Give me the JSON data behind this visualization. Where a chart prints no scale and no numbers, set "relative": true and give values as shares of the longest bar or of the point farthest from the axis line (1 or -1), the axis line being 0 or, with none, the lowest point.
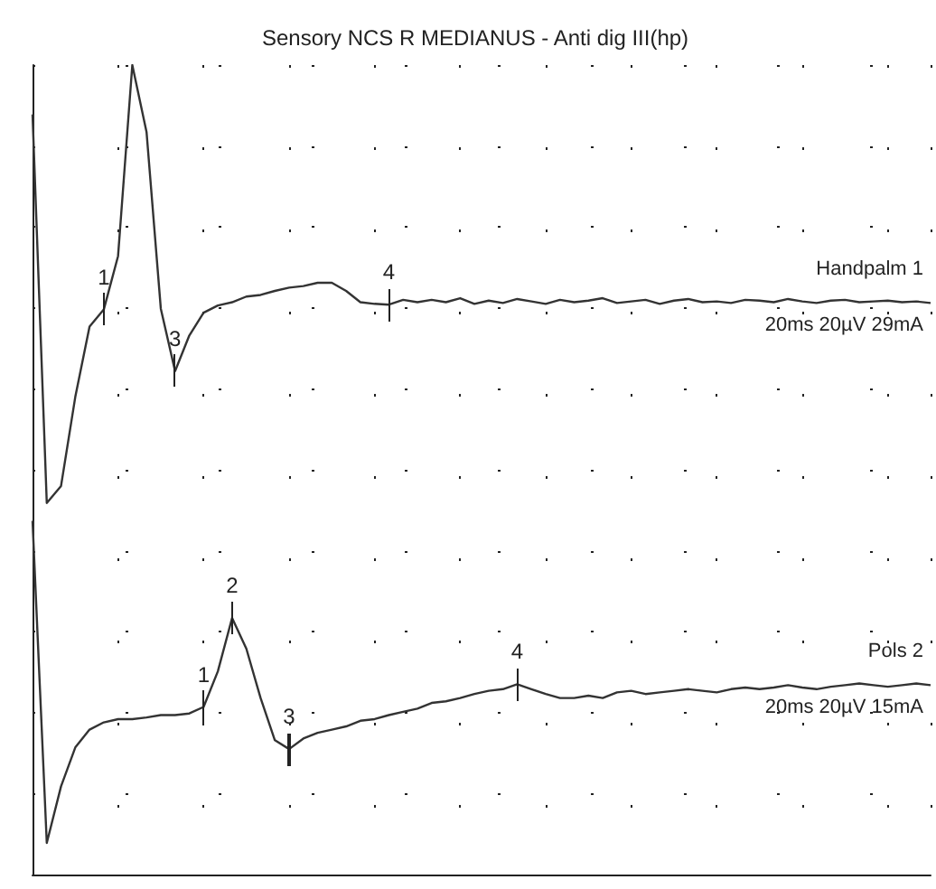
{
  "chart_data": {
    "type": "line",
    "relative": true,
    "title": "Sensory NCS R MEDIANUS - Anti dig III(hp)",
    "categories": [
      null,
      null,
      null,
      null,
      null,
      null,
      null,
      null,
      null,
      null,
      null,
      null,
      null,
      null,
      null,
      null,
      null,
      null,
      null,
      null,
      null,
      null,
      null,
      null,
      null,
      null,
      null,
      null,
      null,
      null,
      null,
      null,
      null,
      null,
      null,
      null,
      null,
      null,
      null,
      null,
      null,
      null,
      null,
      null,
      null,
      null,
      null,
      null,
      null,
      null,
      null,
      null,
      null,
      null,
      null,
      null,
      null,
      null,
      null,
      null,
      null,
      null,
      null,
      null
    ],
    "series": [
      {
        "name": "Handpalm 1",
        "color": "#333333",
        "values": [
          0.939,
          0.459,
          0.48,
          0.59,
          0.677,
          0.698,
          0.764,
          1.0,
          0.917,
          0.699,
          0.622,
          0.666,
          0.694,
          0.703,
          0.707,
          0.714,
          0.716,
          0.721,
          0.725,
          0.727,
          0.731,
          0.731,
          0.721,
          0.707,
          0.705,
          0.704,
          0.71,
          0.707,
          0.71,
          0.707,
          0.712,
          0.705,
          0.709,
          0.706,
          0.711,
          0.708,
          0.705,
          0.71,
          0.707,
          0.709,
          0.712,
          0.706,
          0.708,
          0.71,
          0.705,
          0.709,
          0.711,
          0.707,
          0.708,
          0.706,
          0.71,
          0.709,
          0.707,
          0.711,
          0.708,
          0.706,
          0.709,
          0.71,
          0.707,
          0.708,
          0.709,
          0.707,
          0.708,
          0.706
        ]
      },
      {
        "name": "Pols 2",
        "color": "#333333",
        "values": [
          0.437,
          0.039,
          0.109,
          0.157,
          0.179,
          0.188,
          0.192,
          0.192,
          0.194,
          0.197,
          0.197,
          0.199,
          0.207,
          0.251,
          0.317,
          0.279,
          0.218,
          0.166,
          0.155,
          0.168,
          0.175,
          0.179,
          0.183,
          0.19,
          0.192,
          0.197,
          0.201,
          0.205,
          0.212,
          0.214,
          0.218,
          0.223,
          0.227,
          0.229,
          0.235,
          0.229,
          0.223,
          0.218,
          0.218,
          0.221,
          0.218,
          0.225,
          0.227,
          0.223,
          0.225,
          0.227,
          0.229,
          0.227,
          0.225,
          0.229,
          0.231,
          0.229,
          0.231,
          0.234,
          0.231,
          0.229,
          0.232,
          0.234,
          0.236,
          0.234,
          0.232,
          0.234,
          0.236,
          0.234
        ]
      }
    ],
    "annotations": [
      "20ms 20µV 29mA",
      "20ms 20µV 15mA",
      {
        "text": "1",
        "y": 0.698
      },
      {
        "text": "3",
        "y": 0.622
      },
      {
        "text": "4",
        "y": 0.704
      },
      {
        "text": "1",
        "y": 0.207
      },
      {
        "text": "2",
        "y": 0.317
      },
      {
        "text": "3",
        "y": 0.155
      },
      {
        "text": "4",
        "y": 0.235
      }
    ],
    "grid": true,
    "legend": false
  }
}
